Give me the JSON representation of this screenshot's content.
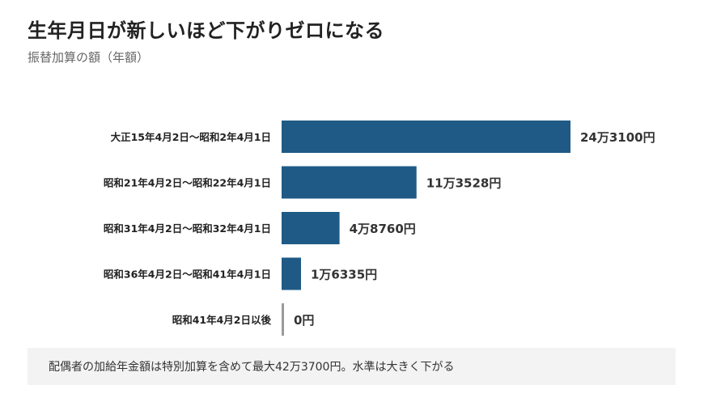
{
  "header": {
    "title": "生年月日が新しいほど下がりゼロになる",
    "subtitle": "振替加算の額（年額）"
  },
  "chart_data": {
    "type": "bar",
    "orientation": "horizontal",
    "categories": [
      "大正15年4月2日～昭和2年4月1日",
      "昭和21年4月2日～昭和22年4月1日",
      "昭和31年4月2日～昭和32年4月1日",
      "昭和36年4月2日～昭和41年4月1日",
      "昭和41年4月2日以後"
    ],
    "values": [
      243100,
      113528,
      48760,
      16335,
      0
    ],
    "value_labels": [
      "24万3100円",
      "11万3528円",
      "4万8760円",
      "1万6335円",
      "0円"
    ],
    "bar_color": "#1f5a86",
    "zero_bar_color": "#9a9a9a",
    "grid": false,
    "legend": "none"
  },
  "footer": {
    "note": "配偶者の加給年金額は特別加算を含めて最大42万3700円。水準は大きく下がる"
  }
}
